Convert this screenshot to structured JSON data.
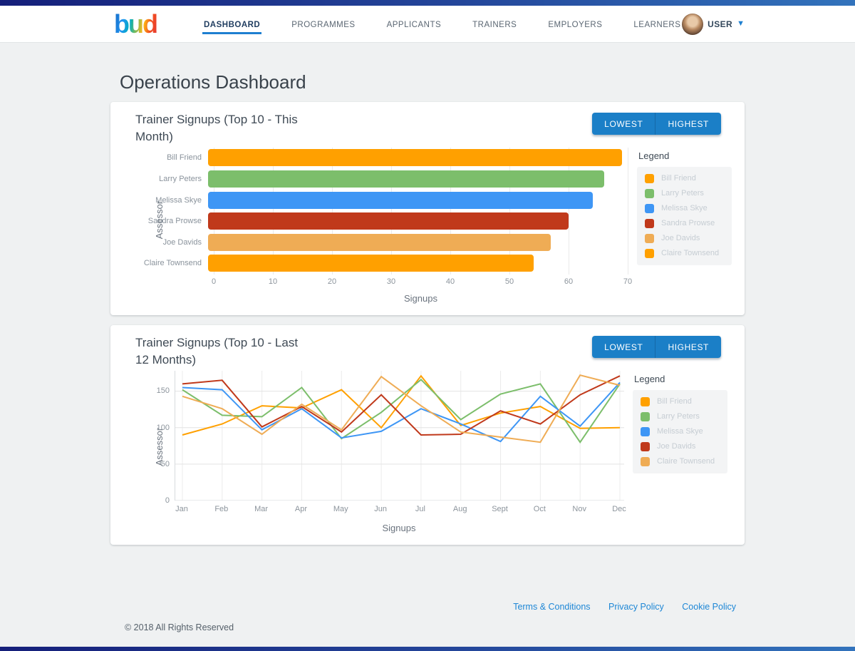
{
  "colors": {
    "topbar_gradient_start": "#151F7A",
    "topbar_gradient_end": "#3273BC",
    "accent_blue": "#1B7FC7",
    "link_blue": "#1E87D6",
    "nav_active_underline": "#1E7FD0"
  },
  "header": {
    "logo_text": "bud",
    "nav": [
      {
        "label": "DASHBOARD",
        "active": true
      },
      {
        "label": "PROGRAMMES",
        "active": false
      },
      {
        "label": "APPLICANTS",
        "active": false
      },
      {
        "label": "TRAINERS",
        "active": false
      },
      {
        "label": "EMPLOYERS",
        "active": false
      },
      {
        "label": "LEARNERS",
        "active": false
      }
    ],
    "user_label": "USER",
    "user_menu_icon": "chevron-down-icon"
  },
  "page": {
    "title": "Operations Dashboard"
  },
  "cards": [
    {
      "buttons": {
        "lowest": "LOWEST",
        "highest": "HIGHEST"
      }
    },
    {
      "buttons": {
        "lowest": "LOWEST",
        "highest": "HIGHEST"
      }
    }
  ],
  "chart_data": [
    {
      "type": "bar",
      "orientation": "horizontal",
      "title": "Trainer Signups (Top 10 - This Month)",
      "categories": [
        "Bill Friend",
        "Larry Peters",
        "Melissa Skye",
        "Sandra Prowse",
        "Joe Davids",
        "Claire Townsend"
      ],
      "values": [
        70,
        67,
        65,
        61,
        58,
        55
      ],
      "colors": [
        "#FFA000",
        "#7CBE6B",
        "#3E96F5",
        "#C0391B",
        "#EFAC55",
        "#FFA000"
      ],
      "xlabel": "Signups",
      "ylabel": "Assessor",
      "xlim": [
        0,
        70
      ],
      "xticks": [
        0,
        10,
        20,
        30,
        40,
        50,
        60,
        70
      ],
      "grid": true,
      "legend_title": "Legend",
      "legend_position": "right",
      "legend": [
        {
          "name": "Bill Friend",
          "color": "#FFA000"
        },
        {
          "name": "Larry Peters",
          "color": "#7CBE6B"
        },
        {
          "name": "Melissa Skye",
          "color": "#3E96F5"
        },
        {
          "name": "Sandra Prowse",
          "color": "#C0391B"
        },
        {
          "name": "Joe Davids",
          "color": "#EFAC55"
        },
        {
          "name": "Claire Townsend",
          "color": "#FFA000"
        }
      ]
    },
    {
      "type": "line",
      "title": "Trainer Signups (Top 10 - Last 12 Months)",
      "x": [
        "Jan",
        "Feb",
        "Mar",
        "Apr",
        "May",
        "Jun",
        "Jul",
        "Aug",
        "Sept",
        "Oct",
        "Nov",
        "Dec"
      ],
      "series": [
        {
          "name": "Bill Friend",
          "color": "#FFA000",
          "values": [
            90,
            105,
            130,
            127,
            152,
            100,
            171,
            103,
            120,
            129,
            99,
            100
          ]
        },
        {
          "name": "Larry Peters",
          "color": "#7CBE6B",
          "values": [
            152,
            117,
            115,
            155,
            85,
            121,
            166,
            111,
            146,
            160,
            80,
            160
          ]
        },
        {
          "name": "Melissa Skye",
          "color": "#3E96F5",
          "values": [
            155,
            152,
            97,
            126,
            86,
            95,
            126,
            105,
            81,
            143,
            102,
            162
          ]
        },
        {
          "name": "Joe Davids",
          "color": "#C0391B",
          "values": [
            160,
            165,
            101,
            129,
            94,
            145,
            90,
            91,
            123,
            105,
            145,
            171
          ]
        },
        {
          "name": "Claire Townsend",
          "color": "#EFAC55",
          "values": [
            143,
            126,
            91,
            132,
            97,
            170,
            130,
            94,
            87,
            80,
            172,
            158
          ]
        }
      ],
      "xlabel": "Signups",
      "ylabel": "Assessor",
      "ylim": [
        0,
        178
      ],
      "yticks": [
        0,
        50,
        100,
        150
      ],
      "grid": true,
      "legend_title": "Legend",
      "legend_position": "right",
      "legend": [
        {
          "name": "Bill Friend",
          "color": "#FFA000"
        },
        {
          "name": "Larry Peters",
          "color": "#7CBE6B"
        },
        {
          "name": "Melissa Skye",
          "color": "#3E96F5"
        },
        {
          "name": "Joe Davids",
          "color": "#C0391B"
        },
        {
          "name": "Claire Townsend",
          "color": "#EFAC55"
        }
      ]
    }
  ],
  "footer": {
    "links": [
      "Terms & Conditions",
      "Privacy Policy",
      "Cookie Policy"
    ],
    "copyright": "© 2018 All Rights Reserved"
  }
}
